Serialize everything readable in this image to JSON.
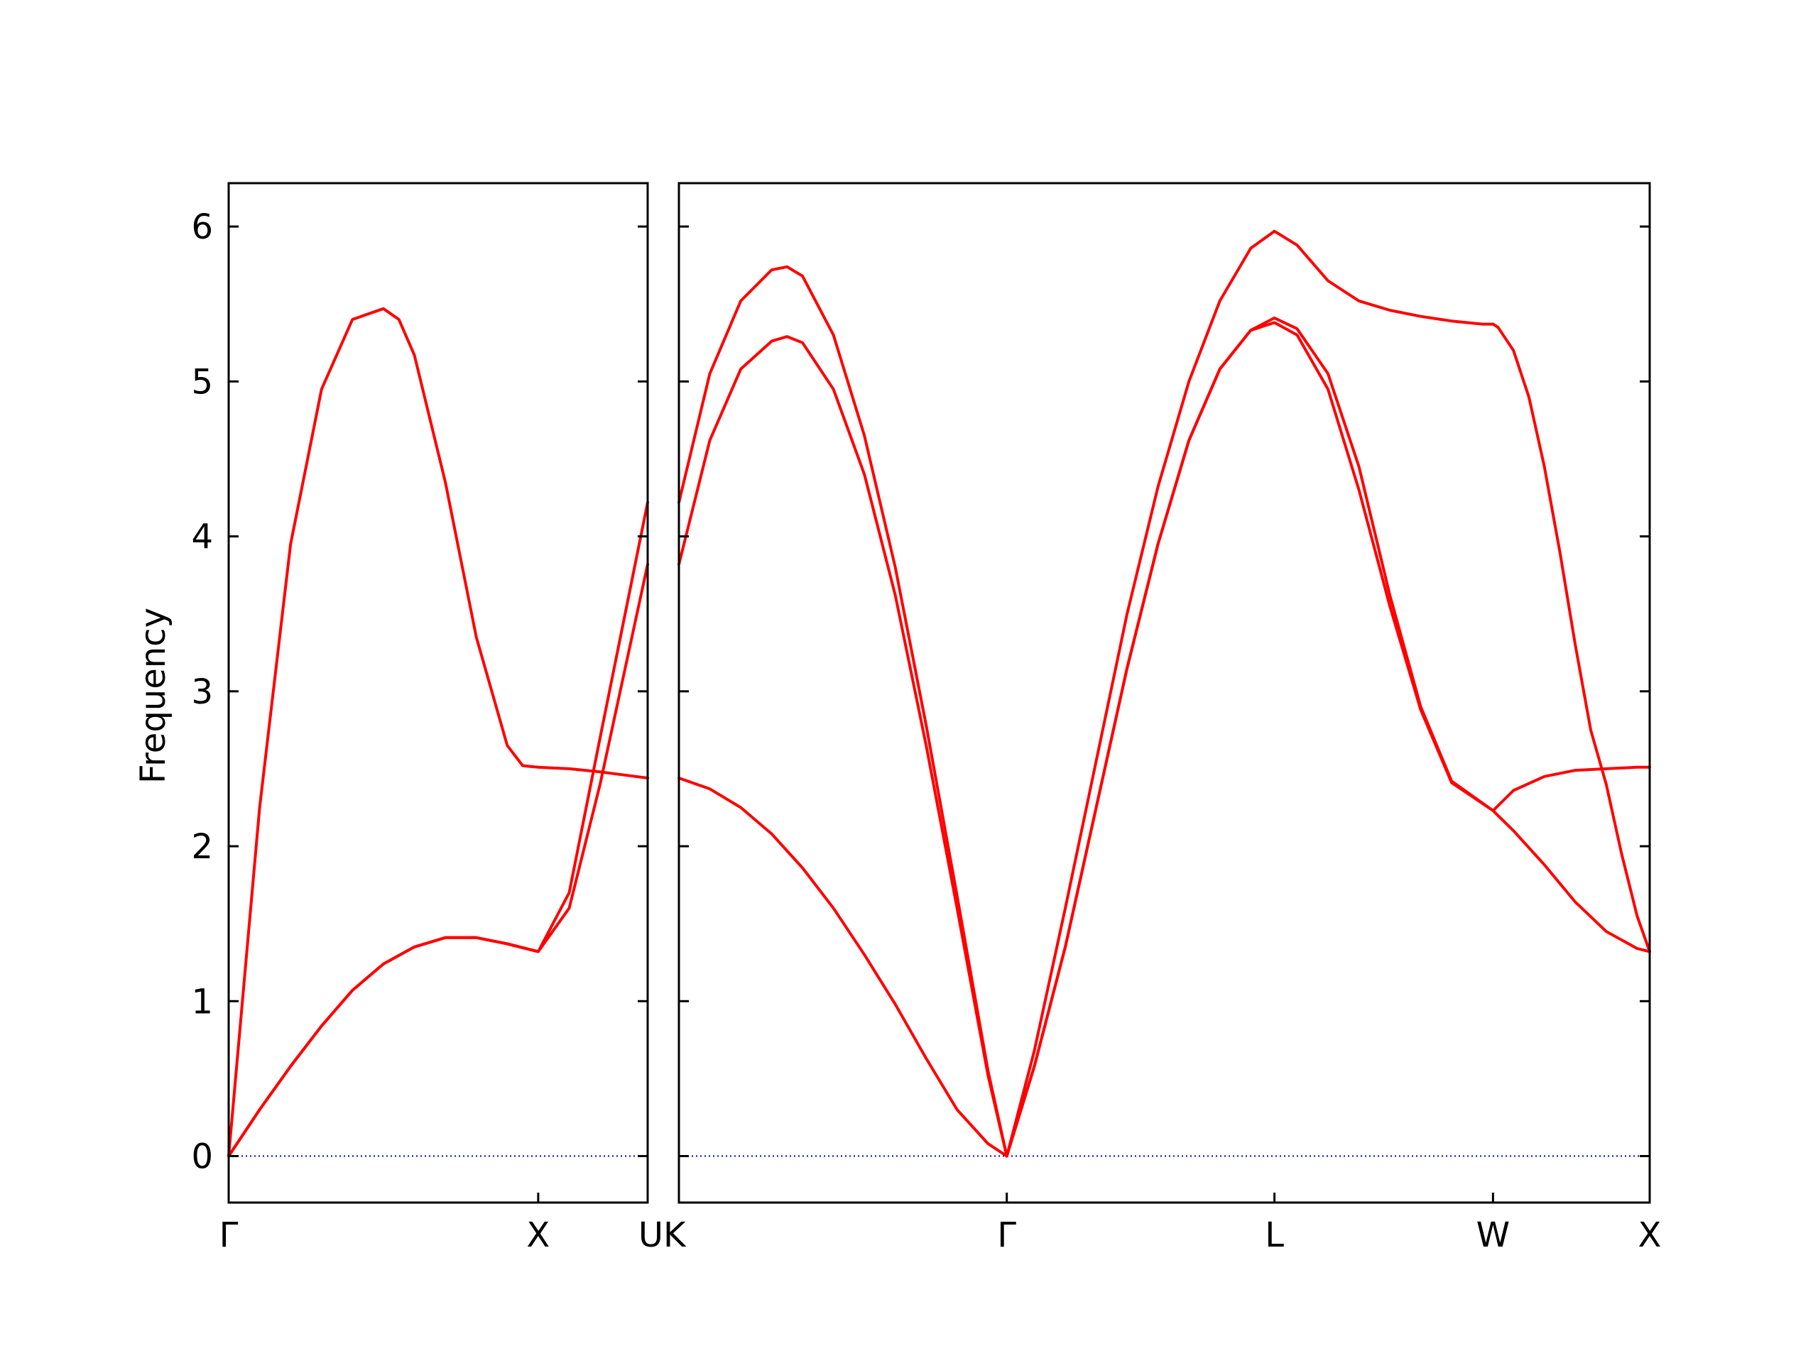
{
  "chart_data": {
    "type": "line",
    "ylabel": "Frequency",
    "ylim": [
      -0.3,
      6.28
    ],
    "yticks": [
      0,
      1,
      2,
      3,
      4,
      5,
      6
    ],
    "line_color": "#ff0000",
    "zero_line_color": "#0000cc",
    "grid": false,
    "panels": [
      {
        "xlim": [
          0,
          1.3536
        ],
        "xticks": [
          {
            "pos": 0,
            "label": "Γ"
          },
          {
            "pos": 1.0,
            "label": "X"
          },
          {
            "pos": 1.3536,
            "label": "U"
          }
        ],
        "series": [
          {
            "x": [
              0,
              0.1,
              0.2,
              0.3,
              0.4,
              0.5,
              0.6,
              0.7,
              0.8,
              0.9,
              1.0,
              1.1,
              1.2,
              1.3536
            ],
            "y": [
              0,
              0.3,
              0.58,
              0.84,
              1.07,
              1.24,
              1.35,
              1.41,
              1.41,
              1.37,
              1.32,
              1.7,
              2.7,
              4.22
            ]
          },
          {
            "x": [
              0,
              0.1,
              0.2,
              0.3,
              0.4,
              0.5,
              0.6,
              0.7,
              0.8,
              0.9,
              1.0,
              1.1,
              1.2,
              1.3536
            ],
            "y": [
              0,
              0.3,
              0.58,
              0.84,
              1.07,
              1.24,
              1.35,
              1.41,
              1.41,
              1.37,
              1.32,
              1.6,
              2.4,
              3.82
            ]
          },
          {
            "x": [
              0,
              0.1,
              0.2,
              0.3,
              0.4,
              0.5,
              0.55,
              0.6,
              0.7,
              0.8,
              0.9,
              0.95,
              1.0,
              1.1,
              1.2,
              1.3536
            ],
            "y": [
              0,
              2.25,
              3.95,
              4.95,
              5.4,
              5.47,
              5.4,
              5.17,
              4.35,
              3.35,
              2.65,
              2.52,
              2.51,
              2.5,
              2.48,
              2.44
            ]
          }
        ]
      },
      {
        "xlim": [
          0,
          3.1407
        ],
        "xticks": [
          {
            "pos": 0,
            "label": "K"
          },
          {
            "pos": 1.0607,
            "label": "Γ"
          },
          {
            "pos": 1.9267,
            "label": "L"
          },
          {
            "pos": 2.6338,
            "label": "W"
          },
          {
            "pos": 3.1407,
            "label": "X"
          }
        ],
        "series": [
          {
            "x": [
              0,
              0.1,
              0.2,
              0.3,
              0.35,
              0.4,
              0.5,
              0.6,
              0.7,
              0.8,
              0.9,
              1.0,
              1.0607
            ],
            "y": [
              3.82,
              4.62,
              5.08,
              5.26,
              5.29,
              5.25,
              4.95,
              4.4,
              3.62,
              2.65,
              1.6,
              0.52,
              0
            ]
          },
          {
            "x": [
              0,
              0.1,
              0.2,
              0.3,
              0.35,
              0.4,
              0.5,
              0.6,
              0.7,
              0.8,
              0.9,
              1.0,
              1.0607
            ],
            "y": [
              4.22,
              5.05,
              5.52,
              5.72,
              5.74,
              5.68,
              5.3,
              4.65,
              3.8,
              2.78,
              1.68,
              0.55,
              0
            ]
          },
          {
            "x": [
              0,
              0.1,
              0.2,
              0.3,
              0.4,
              0.5,
              0.6,
              0.7,
              0.8,
              0.9,
              1.0,
              1.0607
            ],
            "y": [
              2.44,
              2.37,
              2.25,
              2.08,
              1.86,
              1.6,
              1.3,
              0.98,
              0.63,
              0.3,
              0.08,
              0
            ]
          },
          {
            "x": [
              1.0607,
              1.15,
              1.25,
              1.35,
              1.45,
              1.55,
              1.65,
              1.75,
              1.85,
              1.9267,
              2.0,
              2.1,
              2.2,
              2.3,
              2.4,
              2.5,
              2.6338
            ],
            "y": [
              0,
              0.58,
              1.35,
              2.25,
              3.15,
              3.95,
              4.62,
              5.08,
              5.33,
              5.38,
              5.3,
              4.95,
              4.3,
              3.55,
              2.88,
              2.41,
              2.23
            ]
          },
          {
            "x": [
              1.0607,
              1.15,
              1.25,
              1.35,
              1.45,
              1.55,
              1.65,
              1.75,
              1.85,
              1.9267,
              2.0,
              2.1,
              2.2,
              2.3,
              2.4,
              2.5,
              2.6338
            ],
            "y": [
              0,
              0.58,
              1.35,
              2.25,
              3.15,
              3.95,
              4.62,
              5.08,
              5.33,
              5.41,
              5.34,
              5.05,
              4.45,
              3.62,
              2.9,
              2.42,
              2.23
            ]
          },
          {
            "x": [
              1.0607,
              1.15,
              1.25,
              1.35,
              1.45,
              1.55,
              1.65,
              1.75,
              1.85,
              1.9267,
              2.0,
              2.1,
              2.2,
              2.3,
              2.4,
              2.5,
              2.6,
              2.6338
            ],
            "y": [
              0,
              0.68,
              1.6,
              2.55,
              3.5,
              4.32,
              5.0,
              5.52,
              5.86,
              5.97,
              5.88,
              5.65,
              5.52,
              5.46,
              5.42,
              5.39,
              5.37,
              5.37
            ]
          },
          {
            "x": [
              2.6338,
              2.7,
              2.8,
              2.9,
              3.0,
              3.1,
              3.1407
            ],
            "y": [
              2.23,
              2.36,
              2.45,
              2.49,
              2.5,
              2.51,
              2.51
            ]
          },
          {
            "x": [
              2.6338,
              2.7,
              2.8,
              2.9,
              3.0,
              3.1,
              3.1407
            ],
            "y": [
              2.23,
              2.1,
              1.88,
              1.64,
              1.45,
              1.34,
              1.32
            ]
          },
          {
            "x": [
              2.6338,
              2.65,
              2.7,
              2.75,
              2.8,
              2.85,
              2.9,
              2.95,
              3.0,
              3.05,
              3.1,
              3.1407
            ],
            "y": [
              5.37,
              5.35,
              5.2,
              4.9,
              4.45,
              3.9,
              3.3,
              2.75,
              2.4,
              1.95,
              1.55,
              1.32
            ]
          }
        ]
      }
    ]
  }
}
